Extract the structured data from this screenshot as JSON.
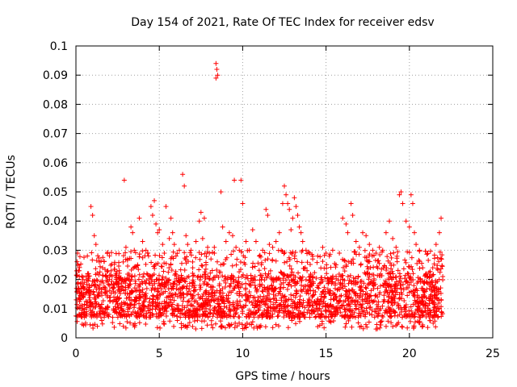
{
  "chart_data": {
    "type": "scatter",
    "title": "Day 154 of 2021, Rate Of TEC Index for receiver edsv",
    "xlabel": "GPS time / hours",
    "ylabel": "ROTI / TECUs",
    "xlim": [
      0,
      25
    ],
    "ylim": [
      0,
      0.1
    ],
    "x_ticks": [
      "0",
      "5",
      "10",
      "15",
      "20",
      "25"
    ],
    "y_ticks": [
      "0",
      "0.01",
      "0.02",
      "0.03",
      "0.04",
      "0.05",
      "0.06",
      "0.07",
      "0.08",
      "0.09",
      "0.1"
    ],
    "grid": true,
    "legend": "none",
    "marker": "plus",
    "color": "#ff0000",
    "series": [
      {
        "points": [
          [
            0.1,
            0.013
          ],
          [
            0.2,
            0.021
          ],
          [
            0.3,
            0.017
          ],
          [
            0.5,
            0.019
          ],
          [
            0.7,
            0.022
          ],
          [
            0.9,
            0.045
          ],
          [
            1.0,
            0.042
          ],
          [
            1.1,
            0.035
          ],
          [
            1.2,
            0.032
          ],
          [
            1.4,
            0.026
          ],
          [
            1.6,
            0.024
          ],
          [
            1.8,
            0.021
          ],
          [
            2.0,
            0.018
          ],
          [
            2.2,
            0.017
          ],
          [
            2.4,
            0.02
          ],
          [
            2.6,
            0.023
          ],
          [
            2.9,
            0.054
          ],
          [
            3.0,
            0.031
          ],
          [
            3.1,
            0.027
          ],
          [
            3.3,
            0.038
          ],
          [
            3.4,
            0.036
          ],
          [
            3.5,
            0.03
          ],
          [
            3.7,
            0.025
          ],
          [
            3.8,
            0.041
          ],
          [
            4.0,
            0.033
          ],
          [
            4.2,
            0.03
          ],
          [
            4.3,
            0.029
          ],
          [
            4.5,
            0.045
          ],
          [
            4.6,
            0.042
          ],
          [
            4.7,
            0.047
          ],
          [
            4.8,
            0.039
          ],
          [
            4.9,
            0.036
          ],
          [
            5.0,
            0.037
          ],
          [
            5.2,
            0.032
          ],
          [
            5.3,
            0.029
          ],
          [
            5.4,
            0.045
          ],
          [
            5.6,
            0.034
          ],
          [
            5.7,
            0.041
          ],
          [
            5.8,
            0.036
          ],
          [
            5.9,
            0.032
          ],
          [
            6.0,
            0.028
          ],
          [
            6.2,
            0.03
          ],
          [
            6.4,
            0.056
          ],
          [
            6.5,
            0.052
          ],
          [
            6.6,
            0.035
          ],
          [
            6.7,
            0.032
          ],
          [
            6.9,
            0.03
          ],
          [
            7.0,
            0.026
          ],
          [
            7.2,
            0.033
          ],
          [
            7.4,
            0.04
          ],
          [
            7.5,
            0.043
          ],
          [
            7.6,
            0.034
          ],
          [
            7.7,
            0.041
          ],
          [
            7.9,
            0.031
          ],
          [
            8.0,
            0.029
          ],
          [
            8.1,
            0.027
          ],
          [
            8.3,
            0.031
          ],
          [
            8.4,
            0.094
          ],
          [
            8.45,
            0.092
          ],
          [
            8.4,
            0.089
          ],
          [
            8.5,
            0.09
          ],
          [
            8.7,
            0.05
          ],
          [
            8.8,
            0.038
          ],
          [
            9.0,
            0.033
          ],
          [
            9.2,
            0.036
          ],
          [
            9.4,
            0.035
          ],
          [
            9.5,
            0.054
          ],
          [
            9.6,
            0.031
          ],
          [
            9.8,
            0.03
          ],
          [
            9.9,
            0.054
          ],
          [
            10.0,
            0.046
          ],
          [
            10.2,
            0.033
          ],
          [
            10.4,
            0.03
          ],
          [
            10.6,
            0.037
          ],
          [
            10.8,
            0.033
          ],
          [
            11.0,
            0.028
          ],
          [
            11.2,
            0.03
          ],
          [
            11.4,
            0.044
          ],
          [
            11.5,
            0.042
          ],
          [
            11.6,
            0.032
          ],
          [
            11.8,
            0.031
          ],
          [
            12.0,
            0.033
          ],
          [
            12.2,
            0.036
          ],
          [
            12.4,
            0.046
          ],
          [
            12.5,
            0.052
          ],
          [
            12.6,
            0.049
          ],
          [
            12.7,
            0.046
          ],
          [
            12.8,
            0.044
          ],
          [
            12.9,
            0.037
          ],
          [
            13.0,
            0.041
          ],
          [
            13.1,
            0.048
          ],
          [
            13.2,
            0.045
          ],
          [
            13.3,
            0.042
          ],
          [
            13.4,
            0.038
          ],
          [
            13.5,
            0.036
          ],
          [
            13.6,
            0.033
          ],
          [
            13.8,
            0.03
          ],
          [
            14.0,
            0.029
          ],
          [
            14.2,
            0.027
          ],
          [
            14.5,
            0.028
          ],
          [
            14.8,
            0.031
          ],
          [
            15.0,
            0.029
          ],
          [
            15.2,
            0.028
          ],
          [
            15.4,
            0.03
          ],
          [
            15.6,
            0.025
          ],
          [
            15.8,
            0.029
          ],
          [
            16.0,
            0.041
          ],
          [
            16.2,
            0.039
          ],
          [
            16.3,
            0.036
          ],
          [
            16.5,
            0.046
          ],
          [
            16.6,
            0.042
          ],
          [
            16.8,
            0.033
          ],
          [
            17.0,
            0.031
          ],
          [
            17.2,
            0.036
          ],
          [
            17.4,
            0.035
          ],
          [
            17.6,
            0.032
          ],
          [
            17.8,
            0.03
          ],
          [
            18.0,
            0.029
          ],
          [
            18.2,
            0.031
          ],
          [
            18.4,
            0.03
          ],
          [
            18.6,
            0.036
          ],
          [
            18.8,
            0.04
          ],
          [
            19.0,
            0.034
          ],
          [
            19.2,
            0.031
          ],
          [
            19.4,
            0.049
          ],
          [
            19.5,
            0.05
          ],
          [
            19.6,
            0.046
          ],
          [
            19.8,
            0.04
          ],
          [
            20.0,
            0.038
          ],
          [
            20.1,
            0.049
          ],
          [
            20.2,
            0.046
          ],
          [
            20.3,
            0.036
          ],
          [
            20.4,
            0.032
          ],
          [
            20.6,
            0.03
          ],
          [
            20.8,
            0.024
          ],
          [
            21.0,
            0.022
          ],
          [
            21.2,
            0.021
          ],
          [
            21.4,
            0.024
          ],
          [
            21.6,
            0.032
          ],
          [
            21.8,
            0.036
          ],
          [
            21.9,
            0.041
          ],
          [
            22.0,
            0.021
          ]
        ],
        "band": {
          "x_range": [
            0,
            22
          ],
          "y_floor_typical": 0.006,
          "y_body_min": 0.007,
          "y_body_max": 0.022,
          "y_min_observed": 0.003
        }
      }
    ]
  }
}
